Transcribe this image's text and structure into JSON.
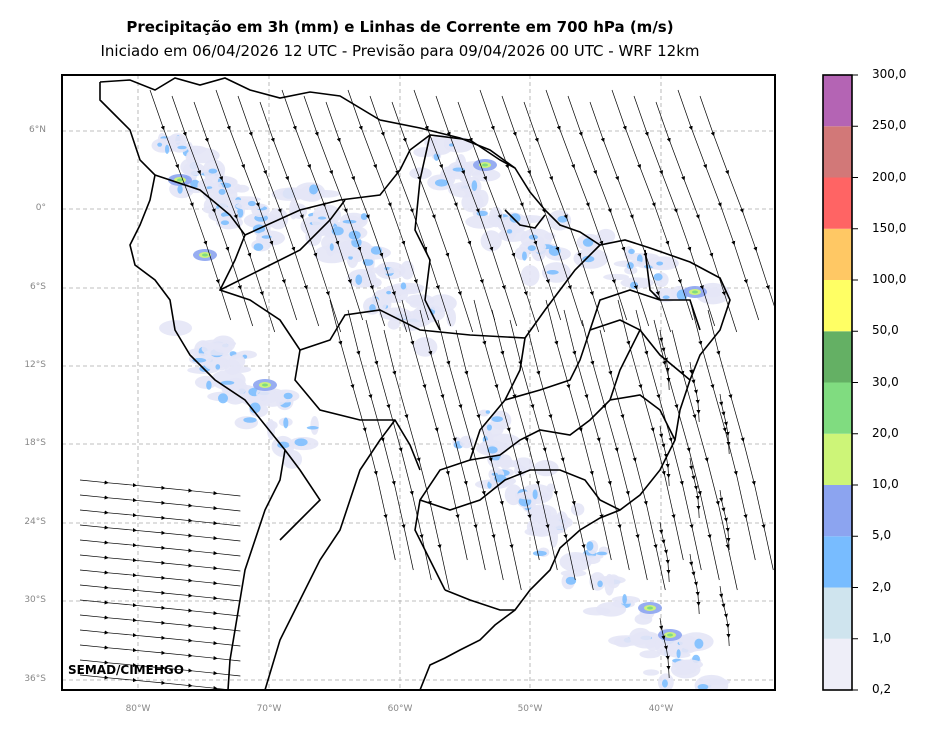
{
  "title": "Precipitação em 3h (mm) e Linhas de Corrente em 700 hPa (m/s)",
  "subtitle": "Iniciado em 06/04/2026 12 UTC - Previsão para 09/04/2026 00 UTC - WRF 12km",
  "credit": "SEMAD/CIMEHGO",
  "lat_ticks": [
    "6°N",
    "0°",
    "6°S",
    "12°S",
    "18°S",
    "24°S",
    "30°S",
    "36°S"
  ],
  "lon_ticks": [
    "80°W",
    "70°W",
    "60°W",
    "50°W",
    "40°W"
  ],
  "colorbar": {
    "labels": [
      "0,2",
      "1,0",
      "2,0",
      "5,0",
      "10,0",
      "20,0",
      "30,0",
      "50,0",
      "100,0",
      "150,0",
      "200,0",
      "250,0",
      "300,0"
    ],
    "colors": [
      "#eeeef8",
      "#cfe4ee",
      "#78bcff",
      "#8ca4f0",
      "#cdf578",
      "#80dc80",
      "#64b064",
      "#ffff64",
      "#ffc864",
      "#ff6464",
      "#d27878",
      "#b464b4"
    ]
  }
}
